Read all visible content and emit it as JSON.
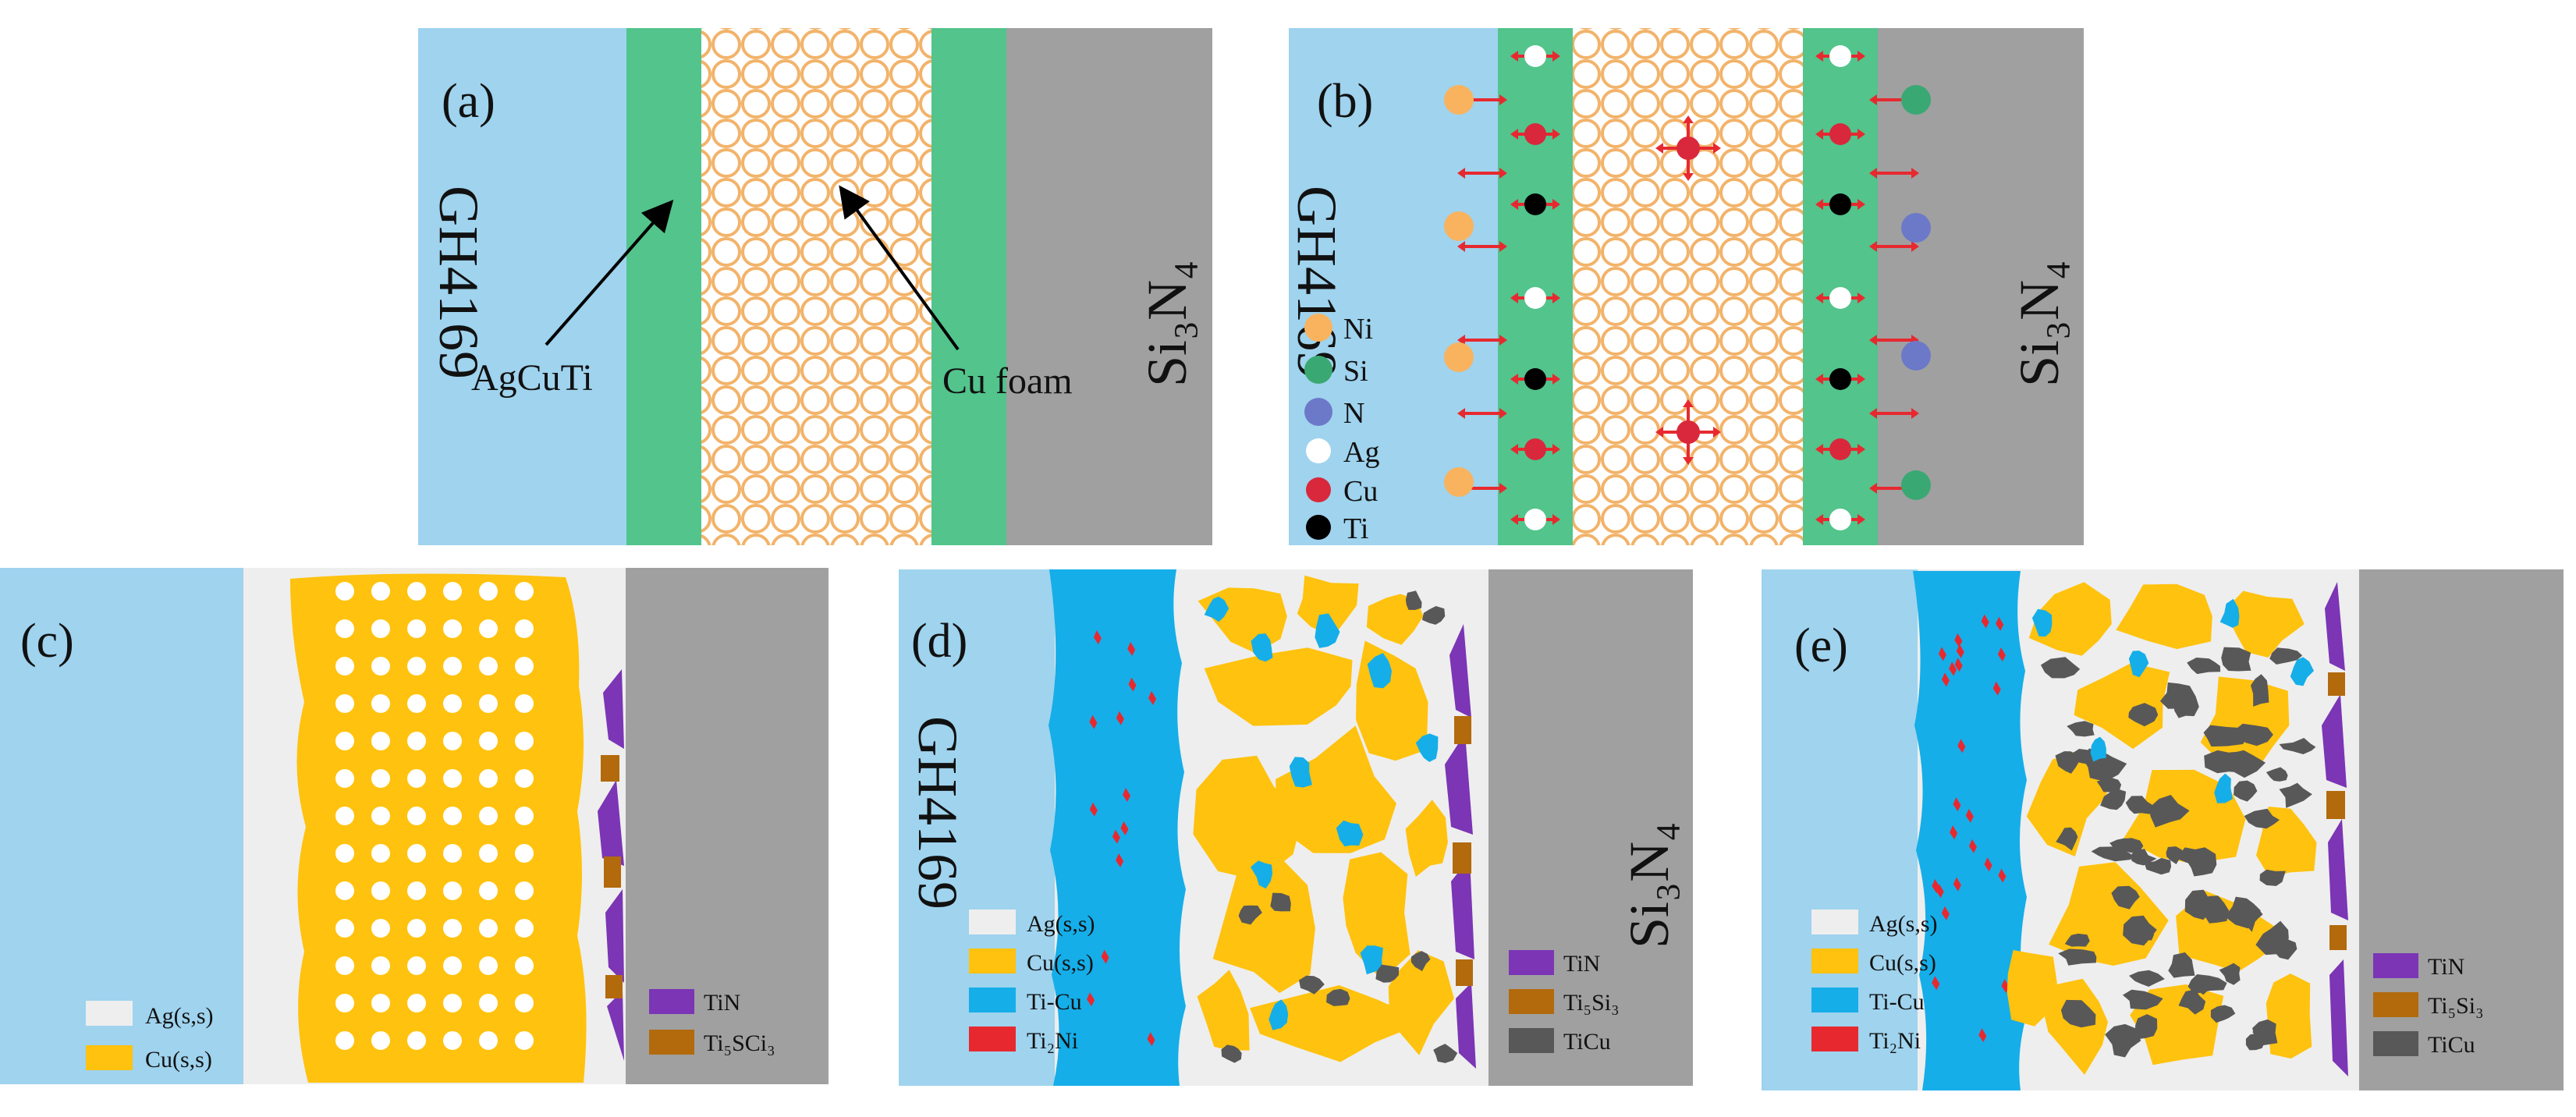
{
  "colors": {
    "gh4169": "#9fd3ee",
    "agcuti": "#52c48c",
    "si3n4": "#a0a0a0",
    "foam_ring": "#f2b36a",
    "ag_ss": "#eeeeee",
    "cu_ss": "#ffc20e",
    "ti_cu": "#15aee9",
    "ti2ni": "#e7292f",
    "tin": "#7b35b5",
    "ti5si3": "#b26a0c",
    "ticu": "#585858",
    "arrow_red": "#e7292f",
    "ni_dot": "#f9b35e",
    "si_dot": "#3aa873",
    "n_dot": "#6c79c8",
    "ag_dot": "#ffffff",
    "cu_dot": "#d9283b",
    "ti_dot": "#000000"
  },
  "panels": {
    "a": {
      "label": "(a)",
      "left_material": "GH4169",
      "right_material": "Si₃N₄",
      "annotations": [
        {
          "text": "AgCuTi",
          "points_to": "filler-layer"
        },
        {
          "text": "Cu foam",
          "points_to": "cu-foam"
        }
      ]
    },
    "b": {
      "label": "(b)",
      "left_material": "GH4169",
      "right_material": "Si₃N₄",
      "legend": [
        {
          "symbol": "Ni",
          "color_key": "ni_dot"
        },
        {
          "symbol": "Si",
          "color_key": "si_dot"
        },
        {
          "symbol": "N",
          "color_key": "n_dot"
        },
        {
          "symbol": "Ag",
          "color_key": "ag_dot"
        },
        {
          "symbol": "Cu",
          "color_key": "cu_dot"
        },
        {
          "symbol": "Ti",
          "color_key": "ti_dot"
        }
      ]
    },
    "c": {
      "label": "(c)",
      "legend_left": [
        {
          "text": "Ag(s,s)",
          "color_key": "ag_ss"
        },
        {
          "text": "Cu(s,s)",
          "color_key": "cu_ss"
        }
      ],
      "legend_right": [
        {
          "text": "TiN",
          "color_key": "tin"
        },
        {
          "text": "Ti₅SCi₃",
          "color_key": "ti5si3"
        }
      ]
    },
    "d": {
      "label": "(d)",
      "left_material": "GH4169",
      "right_material": "Si₃N₄",
      "legend_left": [
        {
          "text": "Ag(s,s)",
          "color_key": "ag_ss"
        },
        {
          "text": "Cu(s,s)",
          "color_key": "cu_ss"
        },
        {
          "text": "Ti-Cu",
          "color_key": "ti_cu"
        },
        {
          "text": "Ti₂Ni",
          "color_key": "ti2ni"
        }
      ],
      "legend_right": [
        {
          "text": "TiN",
          "color_key": "tin"
        },
        {
          "text": "Ti₅Si₃",
          "color_key": "ti5si3"
        },
        {
          "text": "TiCu",
          "color_key": "ticu"
        }
      ]
    },
    "e": {
      "label": "(e)",
      "legend_left": [
        {
          "text": "Ag(s,s)",
          "color_key": "ag_ss"
        },
        {
          "text": "Cu(s,s)",
          "color_key": "cu_ss"
        },
        {
          "text": "Ti-Cu",
          "color_key": "ti_cu"
        },
        {
          "text": "Ti₂Ni",
          "color_key": "ti2ni"
        }
      ],
      "legend_right": [
        {
          "text": "TiN",
          "color_key": "tin"
        },
        {
          "text": "Ti₅Si₃",
          "color_key": "ti5si3"
        },
        {
          "text": "TiCu",
          "color_key": "ticu"
        }
      ]
    }
  }
}
